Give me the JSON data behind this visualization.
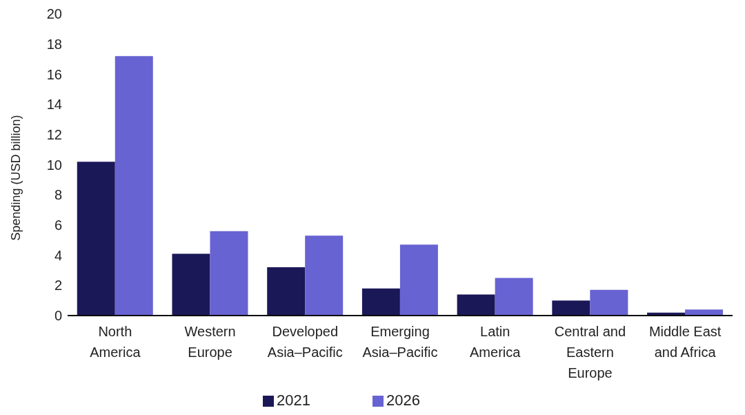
{
  "chart_data": {
    "type": "bar",
    "ylabel": "Spending (USD billion)",
    "categories": [
      "North America",
      "Western Europe",
      "Developed Asia–Pacific",
      "Emerging Asia–Pacific",
      "Latin America",
      "Central and Eastern Europe",
      "Middle East and Africa"
    ],
    "series": [
      {
        "name": "2021",
        "color": "#1b1858",
        "values": [
          10.2,
          4.1,
          3.2,
          1.8,
          1.4,
          1.0,
          0.2
        ]
      },
      {
        "name": "2026",
        "color": "#6863d2",
        "values": [
          17.2,
          5.6,
          5.3,
          4.7,
          2.5,
          1.7,
          0.4
        ]
      }
    ],
    "ylim": [
      0,
      20
    ],
    "yticks": [
      0,
      2,
      4,
      6,
      8,
      10,
      12,
      14,
      16,
      18,
      20
    ],
    "grid": false,
    "legend": "bottom"
  }
}
